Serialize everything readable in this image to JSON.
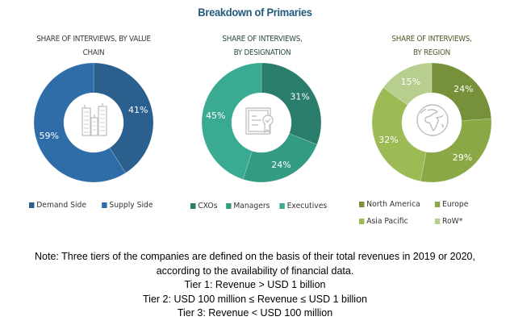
{
  "title": "Breakdown of Primaries",
  "chart_data": [
    {
      "type": "pie",
      "variant": "donut",
      "title": "SHARE OF INTERVIEWS, BY VALUE CHAIN",
      "title_lines": [
        "SHARE OF INTERVIEWS, BY VALUE",
        "CHAIN"
      ],
      "center_icon": "buildings-icon",
      "categories": [
        "Demand Side",
        "Supply Side"
      ],
      "values": [
        41,
        59
      ],
      "labels": [
        "41%",
        "59%"
      ],
      "colors": [
        "#2b5f8e",
        "#2f6da8"
      ],
      "legend_position": "bottom"
    },
    {
      "type": "pie",
      "variant": "donut",
      "title": "SHARE OF INTERVIEWS, BY DESIGNATION",
      "title_lines": [
        "SHARE OF INTERVIEWS,",
        "BY DESIGNATION"
      ],
      "center_icon": "certificate-icon",
      "categories": [
        "CXOs",
        "Managers",
        "Executives"
      ],
      "values": [
        31,
        24,
        45
      ],
      "labels": [
        "31%",
        "24%",
        "45%"
      ],
      "colors": [
        "#2a7d6a",
        "#339b82",
        "#3aaa92"
      ],
      "legend_position": "bottom"
    },
    {
      "type": "pie",
      "variant": "donut",
      "title": "SHARE OF INTERVIEWS, BY REGION",
      "title_lines": [
        "SHARE OF INTERVIEWS,",
        "BY REGION"
      ],
      "center_icon": "globe-icon",
      "categories": [
        "North America",
        "Europe",
        "Asia Pacific",
        "RoW*"
      ],
      "values": [
        24,
        29,
        32,
        15
      ],
      "labels": [
        "24%",
        "29%",
        "32%",
        "15%"
      ],
      "colors": [
        "#77903a",
        "#8ba847",
        "#9dbb55",
        "#b8ce8e"
      ],
      "legend_position": "bottom"
    }
  ],
  "note": {
    "lines": [
      "Note: Three tiers of the companies are defined on the basis of their total revenues in 2019 or 2020,",
      "according to the availability of financial data.",
      "Tier 1: Revenue > USD 1 billion",
      "Tier 2: USD 100 million ≤ Revenue ≤ USD 1 billion",
      "Tier 3: Revenue < USD 100 million"
    ]
  }
}
